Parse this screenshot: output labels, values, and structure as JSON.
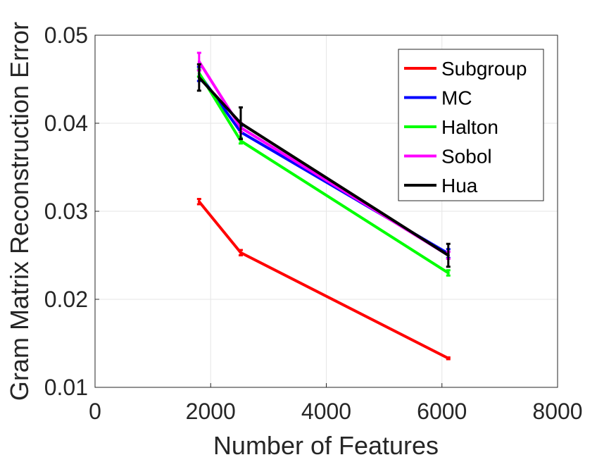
{
  "chart_data": {
    "type": "line",
    "title": "",
    "xlabel": "Number of Features",
    "ylabel": "Gram Matrix Reconstruction Error",
    "xlim": [
      0,
      8000
    ],
    "ylim": [
      0.01,
      0.05
    ],
    "x_ticks": [
      0,
      2000,
      4000,
      6000,
      8000
    ],
    "x_tick_labels": [
      "0",
      "2000",
      "4000",
      "6000",
      "8000"
    ],
    "y_ticks": [
      0.01,
      0.02,
      0.03,
      0.04,
      0.05
    ],
    "y_tick_labels": [
      "0.01",
      "0.02",
      "0.03",
      "0.04",
      "0.05"
    ],
    "grid": true,
    "legend_position": "top-right",
    "x": [
      1800,
      2520,
      6110
    ],
    "series": [
      {
        "name": "Subgroup",
        "color": "#ff0000",
        "values": [
          0.0311,
          0.0253,
          0.0133
        ],
        "err": [
          0.0003,
          0.0003,
          0.0001
        ]
      },
      {
        "name": "MC",
        "color": "#0000ff",
        "values": [
          0.0456,
          0.039,
          0.0252
        ],
        "err": [
          0.0008,
          0.0007,
          0.0005
        ]
      },
      {
        "name": "Halton",
        "color": "#00ff00",
        "values": [
          0.0457,
          0.038,
          0.023
        ],
        "err": [
          0.0004,
          0.0003,
          0.0003
        ]
      },
      {
        "name": "Sobol",
        "color": "#ff00ff",
        "values": [
          0.047,
          0.0395,
          0.025
        ],
        "err": [
          0.001,
          0.0005,
          0.0004
        ]
      },
      {
        "name": "Hua",
        "color": "#000000",
        "values": [
          0.0452,
          0.04,
          0.025
        ],
        "err": [
          0.0015,
          0.0018,
          0.0013
        ]
      }
    ]
  }
}
